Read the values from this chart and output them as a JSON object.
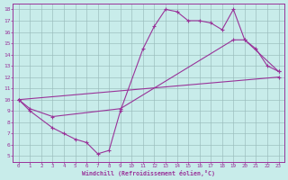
{
  "xlabel": "Windchill (Refroidissement éolien,°C)",
  "background_color": "#c8ecea",
  "line_color": "#993399",
  "xlim": [
    -0.5,
    23.5
  ],
  "ylim": [
    4.5,
    18.5
  ],
  "xticks": [
    0,
    1,
    2,
    3,
    4,
    5,
    6,
    7,
    8,
    9,
    10,
    11,
    12,
    13,
    14,
    15,
    16,
    17,
    18,
    19,
    20,
    21,
    22,
    23
  ],
  "yticks": [
    5,
    6,
    7,
    8,
    9,
    10,
    11,
    12,
    13,
    14,
    15,
    16,
    17,
    18
  ],
  "line1_x": [
    0,
    1,
    3,
    4,
    5,
    6,
    7,
    8,
    9,
    11,
    12,
    13,
    14,
    15,
    16,
    17,
    18,
    19,
    20,
    21,
    22,
    23
  ],
  "line1_y": [
    10,
    9,
    7.5,
    7,
    6.5,
    6.2,
    5.2,
    5.5,
    9.0,
    14.5,
    16.5,
    18.0,
    17.8,
    17.0,
    17.0,
    16.8,
    16.2,
    18.0,
    15.3,
    14.5,
    13.0,
    12.5
  ],
  "line2_x": [
    0,
    1,
    3,
    9,
    19,
    20,
    23
  ],
  "line2_y": [
    10.0,
    9.2,
    8.5,
    9.2,
    15.3,
    15.3,
    12.5
  ],
  "line3_x": [
    0,
    23
  ],
  "line3_y": [
    10.0,
    12.0
  ],
  "grid_color": "#99bbbb"
}
